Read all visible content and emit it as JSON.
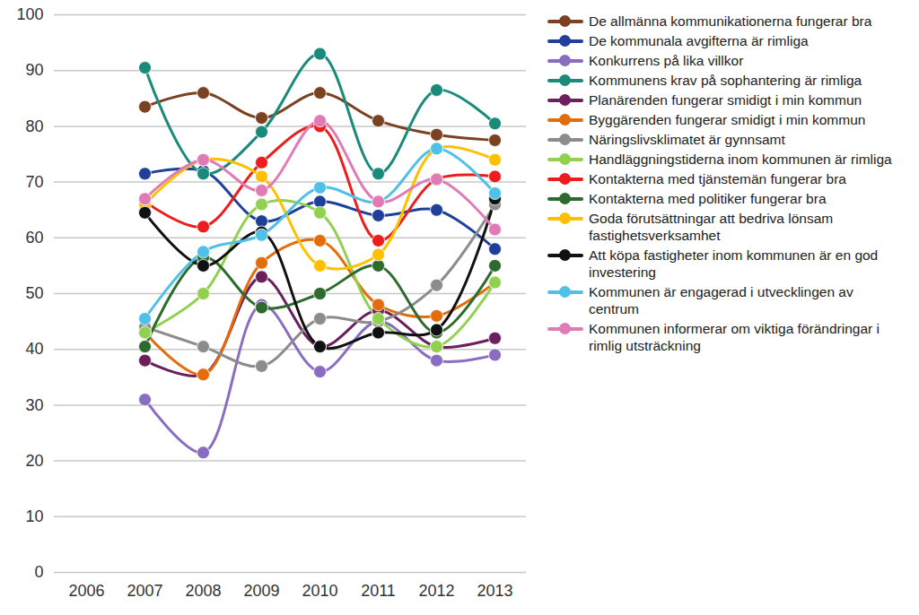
{
  "chart_data": {
    "type": "line",
    "categories": [
      "2006",
      "2007",
      "2008",
      "2009",
      "2010",
      "2011",
      "2012",
      "2013"
    ],
    "ylim": [
      0,
      100
    ],
    "yticks": [
      0,
      10,
      20,
      30,
      40,
      50,
      60,
      70,
      80,
      90,
      100
    ],
    "grid": true,
    "legend": "right",
    "marker": "circle",
    "series": [
      {
        "name": "De allmänna kommunikationerna fungerar bra",
        "color": "#7b4222",
        "values": [
          null,
          83.5,
          86,
          81.5,
          86,
          81,
          78.5,
          77.5
        ]
      },
      {
        "name": "De kommunala avgifterna är rimliga",
        "color": "#1f3f99",
        "values": [
          null,
          71.5,
          72,
          63,
          66.5,
          64,
          65,
          58
        ]
      },
      {
        "name": "Konkurrens på lika villkor",
        "color": "#8a6cc0",
        "values": [
          null,
          31,
          21.5,
          48,
          36,
          45,
          38,
          39
        ]
      },
      {
        "name": "Kommunens krav på sophantering är rimliga",
        "color": "#1a8a7a",
        "values": [
          null,
          90.5,
          71.5,
          79,
          93,
          71.5,
          86.5,
          80.5
        ]
      },
      {
        "name": "Planärenden fungerar smidigt i min kommun",
        "color": "#6b1f5c",
        "values": [
          null,
          38,
          35.5,
          53,
          40.5,
          47,
          40.5,
          42
        ]
      },
      {
        "name": "Byggärenden fungerar smidigt i min kommun",
        "color": "#e46c0a",
        "values": [
          null,
          43,
          35.5,
          55.5,
          59.5,
          48,
          46,
          52
        ]
      },
      {
        "name": "Näringslivsklimatet är gynnsamt",
        "color": "#8c8c8c",
        "values": [
          null,
          44,
          40.5,
          37,
          45.5,
          45,
          51.5,
          66
        ]
      },
      {
        "name": "Handläggningstiderna inom kommunen är rimliga",
        "color": "#92d050",
        "values": [
          null,
          43,
          50,
          66,
          64.5,
          45.5,
          40.5,
          52
        ]
      },
      {
        "name": "Kontakterna med tjänstemän fungerar bra",
        "color": "#ee1c1c",
        "values": [
          null,
          66.5,
          62,
          73.5,
          80,
          59.5,
          70.5,
          71
        ]
      },
      {
        "name": "Kontakterna med politiker fungerar bra",
        "color": "#2d6a2d",
        "values": [
          null,
          40.5,
          56.5,
          47.5,
          50,
          55,
          43,
          55
        ]
      },
      {
        "name": "Goda förutsättningar att bedriva lönsam fastighetsverksamhet",
        "color": "#ffc000",
        "values": [
          null,
          66,
          74,
          71,
          55,
          57,
          76,
          74
        ]
      },
      {
        "name": "Att köpa fastigheter inom kommunen är en god investering",
        "color": "#111111",
        "values": [
          null,
          64.5,
          55,
          61,
          40.5,
          43,
          43.5,
          67
        ]
      },
      {
        "name": "Kommunen är engagerad i utvecklingen av centrum",
        "color": "#4fc0e8",
        "values": [
          null,
          45.5,
          57.5,
          60.5,
          69,
          66.5,
          76,
          68
        ]
      },
      {
        "name": "Kommunen informerar om viktiga förändringar i rimlig utsträckning",
        "color": "#e07bb5",
        "values": [
          null,
          67,
          74,
          68.5,
          81,
          66.5,
          70.5,
          61.5
        ]
      }
    ]
  }
}
